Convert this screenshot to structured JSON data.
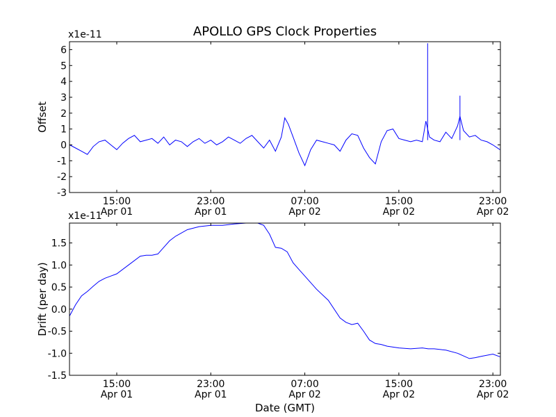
{
  "figure": {
    "title": "APOLLO GPS Clock Properties",
    "xlabel": "Date (GMT)",
    "line_color": "#0000ff",
    "background": "#ffffff"
  },
  "chart_data": [
    {
      "type": "line",
      "name": "offset-panel",
      "title": "APOLLO GPS Clock Properties",
      "ylabel": "Offset",
      "xlabel": "",
      "ylim": [
        -3,
        6.5
      ],
      "y_scale_label": "x1e-11",
      "y_ticks": [
        -3,
        -2,
        -1,
        0,
        1,
        2,
        3,
        4,
        5,
        6
      ],
      "y_tick_labels": [
        "-3",
        "-2",
        "-1",
        "0",
        "1",
        "2",
        "3",
        "4",
        "5",
        "6"
      ],
      "x_unit": "hours since Apr 01 00:00 GMT",
      "xlim": [
        10.98,
        47.64
      ],
      "x_ticks": [
        15,
        23,
        31,
        39,
        47
      ],
      "x_tick_labels": [
        [
          "15:00",
          "Apr 01"
        ],
        [
          "23:00",
          "Apr 01"
        ],
        [
          "07:00",
          "Apr 02"
        ],
        [
          "15:00",
          "Apr 02"
        ],
        [
          "23:00",
          "Apr 02"
        ]
      ],
      "grid": false,
      "series": [
        {
          "color": "#0000ff",
          "x": [
            11.0,
            11.5,
            12.0,
            12.5,
            13.0,
            13.5,
            14.0,
            14.5,
            15.0,
            15.5,
            16.0,
            16.5,
            17.0,
            17.5,
            18.0,
            18.5,
            19.0,
            19.5,
            20.0,
            20.5,
            21.0,
            21.5,
            22.0,
            22.5,
            23.0,
            23.5,
            24.0,
            24.5,
            25.0,
            25.5,
            26.0,
            26.5,
            27.0,
            27.5,
            28.0,
            28.5,
            29.0,
            29.3,
            29.6,
            30.0,
            30.5,
            31.0,
            31.5,
            32.0,
            32.5,
            33.0,
            33.5,
            34.0,
            34.5,
            35.0,
            35.5,
            36.0,
            36.5,
            37.0,
            37.5,
            38.0,
            38.5,
            39.0,
            39.5,
            40.0,
            40.5,
            41.0,
            41.3,
            41.6,
            42.0,
            42.5,
            43.0,
            43.5,
            44.0,
            44.2,
            44.5,
            45.0,
            45.5,
            46.0,
            46.5,
            47.0,
            47.6
          ],
          "y": [
            0.0,
            -0.2,
            -0.4,
            -0.6,
            -0.1,
            0.2,
            0.3,
            0.0,
            -0.3,
            0.1,
            0.4,
            0.6,
            0.2,
            0.3,
            0.4,
            0.1,
            0.5,
            0.0,
            0.3,
            0.2,
            -0.1,
            0.2,
            0.4,
            0.1,
            0.3,
            0.0,
            0.2,
            0.5,
            0.3,
            0.1,
            0.4,
            0.6,
            0.2,
            -0.2,
            0.3,
            -0.4,
            0.5,
            1.7,
            1.3,
            0.5,
            -0.5,
            -1.3,
            -0.3,
            0.3,
            0.2,
            0.1,
            0.0,
            -0.4,
            0.3,
            0.7,
            0.6,
            -0.2,
            -0.8,
            -1.2,
            0.2,
            0.9,
            1.0,
            0.4,
            0.3,
            0.2,
            0.3,
            0.2,
            1.5,
            0.5,
            0.3,
            0.2,
            0.8,
            0.4,
            1.2,
            1.8,
            0.9,
            0.5,
            0.6,
            0.3,
            0.2,
            0.0,
            -0.3
          ]
        }
      ],
      "spikes": [
        {
          "x": 41.45,
          "y": 6.4
        },
        {
          "x": 44.2,
          "y": 3.1
        }
      ]
    },
    {
      "type": "line",
      "name": "drift-panel",
      "title": "",
      "ylabel": "Drift (per day)",
      "xlabel": "Date (GMT)",
      "ylim": [
        -1.5,
        1.95
      ],
      "y_scale_label": "x1e-11",
      "y_ticks": [
        -1.5,
        -1.0,
        -0.5,
        0.0,
        0.5,
        1.0,
        1.5
      ],
      "y_tick_labels": [
        "-1.5",
        "-1.0",
        "-0.5",
        "0.0",
        "0.5",
        "1.0",
        "1.5"
      ],
      "x_unit": "hours since Apr 01 00:00 GMT",
      "xlim": [
        10.98,
        47.64
      ],
      "x_ticks": [
        15,
        23,
        31,
        39,
        47
      ],
      "x_tick_labels": [
        [
          "15:00",
          "Apr 01"
        ],
        [
          "23:00",
          "Apr 01"
        ],
        [
          "07:00",
          "Apr 02"
        ],
        [
          "15:00",
          "Apr 02"
        ],
        [
          "23:00",
          "Apr 02"
        ]
      ],
      "grid": false,
      "series": [
        {
          "color": "#0000ff",
          "x": [
            11.0,
            11.5,
            12.0,
            12.5,
            13.0,
            13.5,
            14.0,
            14.5,
            15.0,
            16.0,
            17.0,
            17.5,
            18.0,
            18.5,
            19.0,
            19.5,
            20.0,
            21.0,
            22.0,
            23.0,
            24.0,
            25.0,
            26.0,
            27.0,
            27.5,
            28.0,
            28.5,
            29.0,
            29.5,
            30.0,
            30.5,
            31.0,
            32.0,
            33.0,
            34.0,
            34.5,
            35.0,
            35.5,
            36.0,
            36.5,
            37.0,
            37.5,
            38.0,
            39.0,
            40.0,
            41.0,
            41.5,
            42.0,
            43.0,
            44.0,
            45.0,
            45.5,
            46.0,
            47.0,
            47.6
          ],
          "y": [
            -0.15,
            0.1,
            0.3,
            0.4,
            0.52,
            0.63,
            0.7,
            0.75,
            0.8,
            1.0,
            1.2,
            1.22,
            1.22,
            1.25,
            1.4,
            1.55,
            1.65,
            1.8,
            1.87,
            1.9,
            1.9,
            1.93,
            1.95,
            1.95,
            1.9,
            1.7,
            1.4,
            1.38,
            1.3,
            1.05,
            0.9,
            0.75,
            0.45,
            0.2,
            -0.2,
            -0.3,
            -0.35,
            -0.32,
            -0.5,
            -0.7,
            -0.78,
            -0.8,
            -0.84,
            -0.88,
            -0.9,
            -0.88,
            -0.9,
            -0.9,
            -0.93,
            -1.0,
            -1.12,
            -1.1,
            -1.07,
            -1.02,
            -1.08
          ]
        }
      ]
    }
  ]
}
